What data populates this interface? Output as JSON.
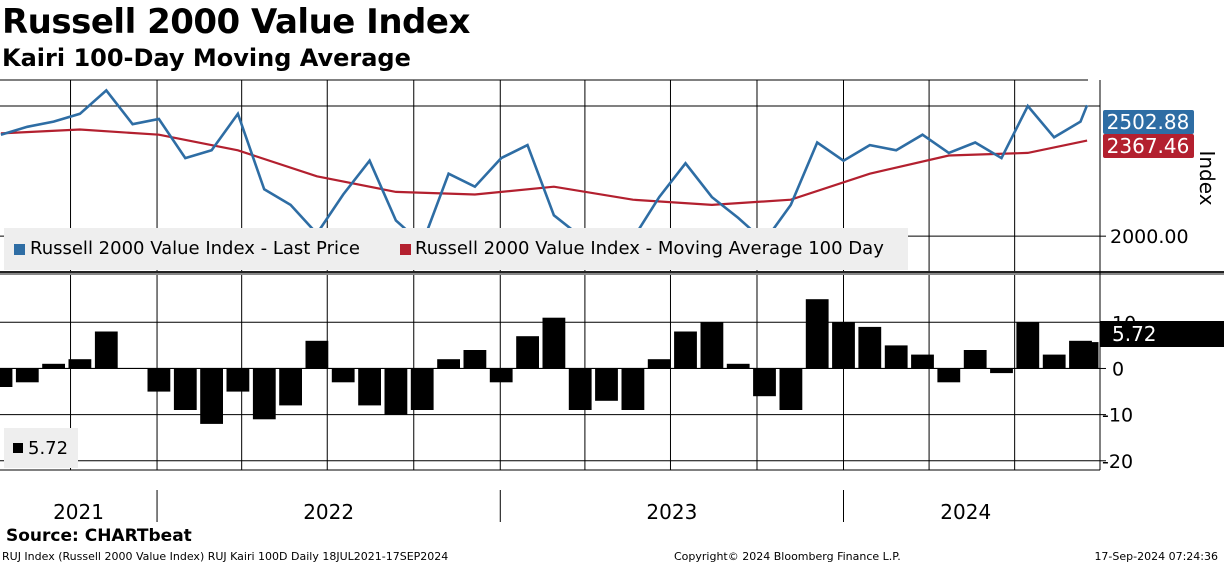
{
  "header": {
    "title": "Russell 2000 Value Index",
    "subtitle": "Kairi 100-Day Moving Average"
  },
  "footer": {
    "source": "Source: CHARTbeat",
    "left": "RUJ Index (Russell 2000 Value Index) RUJ Kairi 100D  Daily 18JUL2021-17SEP2024",
    "center": "Copyright© 2024 Bloomberg Finance L.P.",
    "right": "17-Sep-2024 07:24:36"
  },
  "colors": {
    "price": "#2e6da4",
    "moving_average": "#b3202f",
    "kairi": "#000000",
    "grid": "#000000",
    "legend_bg": "#eeeeee"
  },
  "chart_data": [
    {
      "type": "line",
      "panel": "upper",
      "ylabel": "Index",
      "ylim": [
        1870,
        2600
      ],
      "yticks": [
        {
          "value": 2000,
          "label": "2000.00"
        }
      ],
      "x_labels": [
        "2021",
        "2022",
        "2023",
        "2024"
      ],
      "x_range": [
        "2021-07-18",
        "2024-09-17"
      ],
      "legend": [
        "Russell 2000 Value Index - Last Price",
        "Russell 2000 Value Index - Moving Average 100 Day"
      ],
      "last_values": {
        "price": "2502.88",
        "moving_average": "2367.46"
      },
      "series": [
        {
          "name": "Russell 2000 Value Index - Last Price",
          "x": [
            "2021-07-19",
            "2021-08-16",
            "2021-09-13",
            "2021-10-11",
            "2021-11-08",
            "2021-12-06",
            "2022-01-03",
            "2022-01-31",
            "2022-02-28",
            "2022-03-28",
            "2022-04-25",
            "2022-05-23",
            "2022-06-20",
            "2022-07-18",
            "2022-08-15",
            "2022-09-12",
            "2022-10-10",
            "2022-11-07",
            "2022-12-05",
            "2023-01-02",
            "2023-01-30",
            "2023-02-27",
            "2023-03-27",
            "2023-04-24",
            "2023-05-22",
            "2023-06-19",
            "2023-07-17",
            "2023-08-14",
            "2023-09-11",
            "2023-10-09",
            "2023-11-06",
            "2023-12-04",
            "2024-01-01",
            "2024-01-29",
            "2024-02-26",
            "2024-03-25",
            "2024-04-22",
            "2024-05-20",
            "2024-06-17",
            "2024-07-15",
            "2024-08-12",
            "2024-09-09",
            "2024-09-16"
          ],
          "values": [
            2390,
            2420,
            2440,
            2470,
            2560,
            2430,
            2450,
            2300,
            2330,
            2470,
            2180,
            2120,
            2010,
            2160,
            2290,
            2060,
            1970,
            2240,
            2190,
            2300,
            2350,
            2080,
            2000,
            2010,
            1990,
            2150,
            2280,
            2150,
            2070,
            1980,
            2120,
            2360,
            2290,
            2350,
            2330,
            2390,
            2320,
            2360,
            2300,
            2500,
            2380,
            2440,
            2503
          ]
        },
        {
          "name": "Russell 2000 Value Index - Moving Average 100 Day",
          "x": [
            "2021-07-19",
            "2021-10-11",
            "2022-01-03",
            "2022-03-28",
            "2022-06-20",
            "2022-09-12",
            "2022-12-05",
            "2023-02-27",
            "2023-05-22",
            "2023-08-14",
            "2023-11-06",
            "2024-01-29",
            "2024-04-22",
            "2024-07-15",
            "2024-09-16"
          ],
          "values": [
            2395,
            2410,
            2390,
            2330,
            2230,
            2170,
            2160,
            2190,
            2140,
            2120,
            2140,
            2240,
            2310,
            2320,
            2367
          ]
        }
      ]
    },
    {
      "type": "bar",
      "panel": "lower",
      "ylim": [
        -22,
        17
      ],
      "yticks": [
        10,
        0,
        -10,
        -20
      ],
      "legend": [
        "5.72"
      ],
      "last_value": "5.72",
      "x": [
        "2021-07-19",
        "2021-08-16",
        "2021-09-13",
        "2021-10-11",
        "2021-11-08",
        "2021-12-06",
        "2022-01-03",
        "2022-01-31",
        "2022-02-28",
        "2022-03-28",
        "2022-04-25",
        "2022-05-23",
        "2022-06-20",
        "2022-07-18",
        "2022-08-15",
        "2022-09-12",
        "2022-10-10",
        "2022-11-07",
        "2022-12-05",
        "2023-01-02",
        "2023-01-30",
        "2023-02-27",
        "2023-03-27",
        "2023-04-24",
        "2023-05-22",
        "2023-06-19",
        "2023-07-17",
        "2023-08-14",
        "2023-09-11",
        "2023-10-09",
        "2023-11-06",
        "2023-12-04",
        "2024-01-01",
        "2024-01-29",
        "2024-02-26",
        "2024-03-25",
        "2024-04-22",
        "2024-05-20",
        "2024-06-17",
        "2024-07-15",
        "2024-08-12",
        "2024-09-09",
        "2024-09-16"
      ],
      "values": [
        -4,
        -3,
        1,
        2,
        8,
        0,
        -5,
        -9,
        -12,
        -5,
        -11,
        -8,
        6,
        -3,
        -8,
        -10,
        -9,
        2,
        4,
        -3,
        7,
        11,
        -9,
        -7,
        -9,
        2,
        8,
        10,
        1,
        -6,
        -9,
        15,
        10,
        9,
        5,
        3,
        -3,
        4,
        -1,
        10,
        3,
        6,
        5.72
      ]
    }
  ]
}
